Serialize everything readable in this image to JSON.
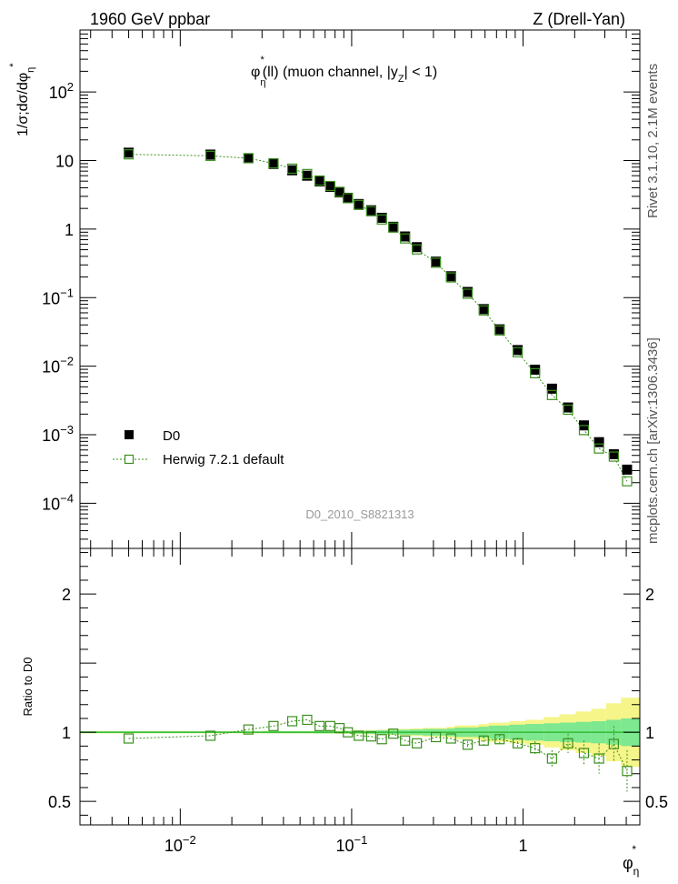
{
  "header": {
    "left": "1960 GeV ppbar",
    "right": "Z (Drell-Yan)"
  },
  "side_labels": {
    "rivet": "Rivet 3.1.10,  2.1M events",
    "mcplots": "mcplots.cern.ch [arXiv:1306.3436]"
  },
  "watermark": "D0_2010_S8821313",
  "plot_title": {
    "phi": "φ",
    "eta": "η",
    "star": "*",
    "middle": "(ll) (muon channel, |y",
    "z": "Z",
    "end": "| < 1)"
  },
  "y_label_main": {
    "text": "1/σ;dσ/dφ",
    "sub": "η",
    "sup": "*"
  },
  "y_label_ratio": "Ratio to D0",
  "x_label": {
    "base": "φ",
    "sub": "η",
    "sup": "*"
  },
  "legend": {
    "data_label": "D0",
    "mc_label": "Herwig 7.2.1 default"
  },
  "colors": {
    "data": "#000000",
    "mc": "#3a8f1e",
    "band_inner": "#7de88f",
    "band_outer": "#f5f58a",
    "unity": "#3ac03a"
  },
  "chart_data": {
    "type": "scatter",
    "x_scale": "log",
    "xlim": [
      0.0026,
      4.8
    ],
    "main": {
      "y_scale": "log",
      "ylim": [
        2.2e-05,
        800
      ],
      "y_ticks": [
        {
          "v": 0.0001,
          "base": "10",
          "exp": "−4"
        },
        {
          "v": 0.001,
          "base": "10",
          "exp": "−3"
        },
        {
          "v": 0.01,
          "base": "10",
          "exp": "−2"
        },
        {
          "v": 0.1,
          "base": "10",
          "exp": "−1"
        },
        {
          "v": 1,
          "base": "1",
          "exp": ""
        },
        {
          "v": 10,
          "base": "10",
          "exp": ""
        },
        {
          "v": 100,
          "base": "10",
          "exp": "2"
        }
      ]
    },
    "ratio": {
      "ylim": [
        0.33,
        2.33
      ],
      "y_ticks": [
        0.5,
        1,
        2
      ],
      "y_tick_labels": [
        "0.5",
        "1",
        "2"
      ]
    },
    "x_ticks": [
      {
        "v": 0.01,
        "base": "10",
        "exp": "−2"
      },
      {
        "v": 0.1,
        "base": "10",
        "exp": "−1"
      },
      {
        "v": 1,
        "base": "1",
        "exp": ""
      }
    ],
    "x": [
      0.005,
      0.015,
      0.025,
      0.035,
      0.045,
      0.055,
      0.065,
      0.075,
      0.085,
      0.095,
      0.11,
      0.13,
      0.15,
      0.175,
      0.205,
      0.24,
      0.31,
      0.38,
      0.475,
      0.59,
      0.73,
      0.93,
      1.175,
      1.475,
      1.83,
      2.265,
      2.775,
      3.385,
      4.045
    ],
    "series": [
      {
        "name": "D0",
        "values": [
          13.0,
          12.2,
          10.8,
          8.9,
          7.2,
          6.0,
          4.95,
          4.12,
          3.42,
          2.86,
          2.32,
          1.88,
          1.46,
          1.08,
          0.78,
          0.545,
          0.335,
          0.205,
          0.121,
          0.068,
          0.0345,
          0.0172,
          0.0089,
          0.0047,
          0.0025,
          0.00137,
          0.00078,
          0.00052,
          0.00031
        ]
      },
      {
        "name": "Herwig 7.2.1 default",
        "values": [
          12.3,
          11.7,
          10.8,
          9.1,
          7.6,
          6.35,
          5.1,
          4.25,
          3.49,
          2.82,
          2.25,
          1.82,
          1.38,
          1.05,
          0.73,
          0.505,
          0.323,
          0.197,
          0.114,
          0.065,
          0.0332,
          0.016,
          0.0079,
          0.0038,
          0.00232,
          0.00117,
          0.00063,
          0.00048,
          0.00021
        ]
      }
    ],
    "ratio_values": [
      0.955,
      0.975,
      1.02,
      1.045,
      1.08,
      1.09,
      1.045,
      1.045,
      1.03,
      1.0,
      0.975,
      0.97,
      0.95,
      0.99,
      0.94,
      0.92,
      0.965,
      0.955,
      0.91,
      0.94,
      0.95,
      0.92,
      0.885,
      0.81,
      0.92,
      0.85,
      0.81,
      0.915,
      0.72
    ],
    "ratio_errors": [
      0.005,
      0.005,
      0.006,
      0.006,
      0.007,
      0.007,
      0.008,
      0.008,
      0.009,
      0.009,
      0.01,
      0.01,
      0.012,
      0.012,
      0.014,
      0.016,
      0.018,
      0.02,
      0.024,
      0.028,
      0.032,
      0.04,
      0.05,
      0.06,
      0.07,
      0.09,
      0.11,
      0.13,
      0.15
    ],
    "band_edges": [
      0.0026,
      0.01,
      0.02,
      0.03,
      0.04,
      0.05,
      0.06,
      0.07,
      0.08,
      0.09,
      0.1,
      0.12,
      0.14,
      0.16,
      0.19,
      0.22,
      0.26,
      0.36,
      0.4,
      0.55,
      0.63,
      0.83,
      1.03,
      1.32,
      1.63,
      2.03,
      2.5,
      3.05,
      3.72,
      4.8
    ],
    "band_inner": [
      0.006,
      0.006,
      0.006,
      0.007,
      0.007,
      0.007,
      0.008,
      0.008,
      0.008,
      0.009,
      0.01,
      0.012,
      0.014,
      0.016,
      0.018,
      0.02,
      0.024,
      0.028,
      0.034,
      0.04,
      0.048,
      0.055,
      0.06,
      0.065,
      0.07,
      0.075,
      0.08,
      0.09,
      0.1
    ],
    "band_outer": [
      0.008,
      0.008,
      0.008,
      0.009,
      0.009,
      0.009,
      0.01,
      0.01,
      0.011,
      0.012,
      0.014,
      0.016,
      0.018,
      0.02,
      0.024,
      0.028,
      0.032,
      0.04,
      0.05,
      0.06,
      0.07,
      0.08,
      0.09,
      0.11,
      0.13,
      0.15,
      0.17,
      0.21,
      0.25
    ]
  }
}
